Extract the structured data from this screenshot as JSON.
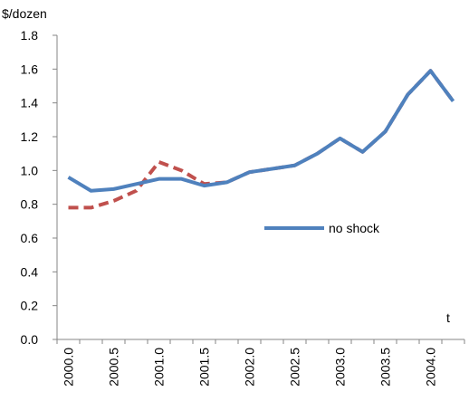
{
  "chart_data": {
    "type": "line",
    "y_label": "$/dozen",
    "x_label": "t",
    "categories": [
      "2000.0",
      null,
      "2000.5",
      null,
      "2001.0",
      null,
      "2001.5",
      null,
      "2002.0",
      null,
      "2002.5",
      null,
      "2003.0",
      null,
      "2003.5",
      null,
      "2004.0",
      null
    ],
    "series": [
      {
        "name": "no shock",
        "color": "#4f81bd",
        "dashed": false,
        "values": [
          0.96,
          0.88,
          0.89,
          0.92,
          0.95,
          0.95,
          0.91,
          0.93,
          0.99,
          1.01,
          1.03,
          1.1,
          1.19,
          1.11,
          1.23,
          1.45,
          1.59,
          1.41
        ]
      },
      {
        "color": "#c0504d",
        "dashed": true,
        "values": [
          0.78,
          0.78,
          0.82,
          0.88,
          1.05,
          1.0,
          0.92,
          0.93,
          0.99,
          1.01,
          1.03,
          1.1,
          1.19,
          1.11,
          1.23,
          1.45,
          1.59,
          1.41
        ]
      }
    ],
    "ylim": [
      0,
      1.8
    ],
    "yticks": [
      {
        "value": 0,
        "label": "0.0"
      },
      0.2,
      0.4,
      0.6,
      0.8,
      {
        "value": 1,
        "label": "1.0"
      },
      1.2,
      1.4,
      1.6,
      1.8
    ],
    "grid": false
  }
}
